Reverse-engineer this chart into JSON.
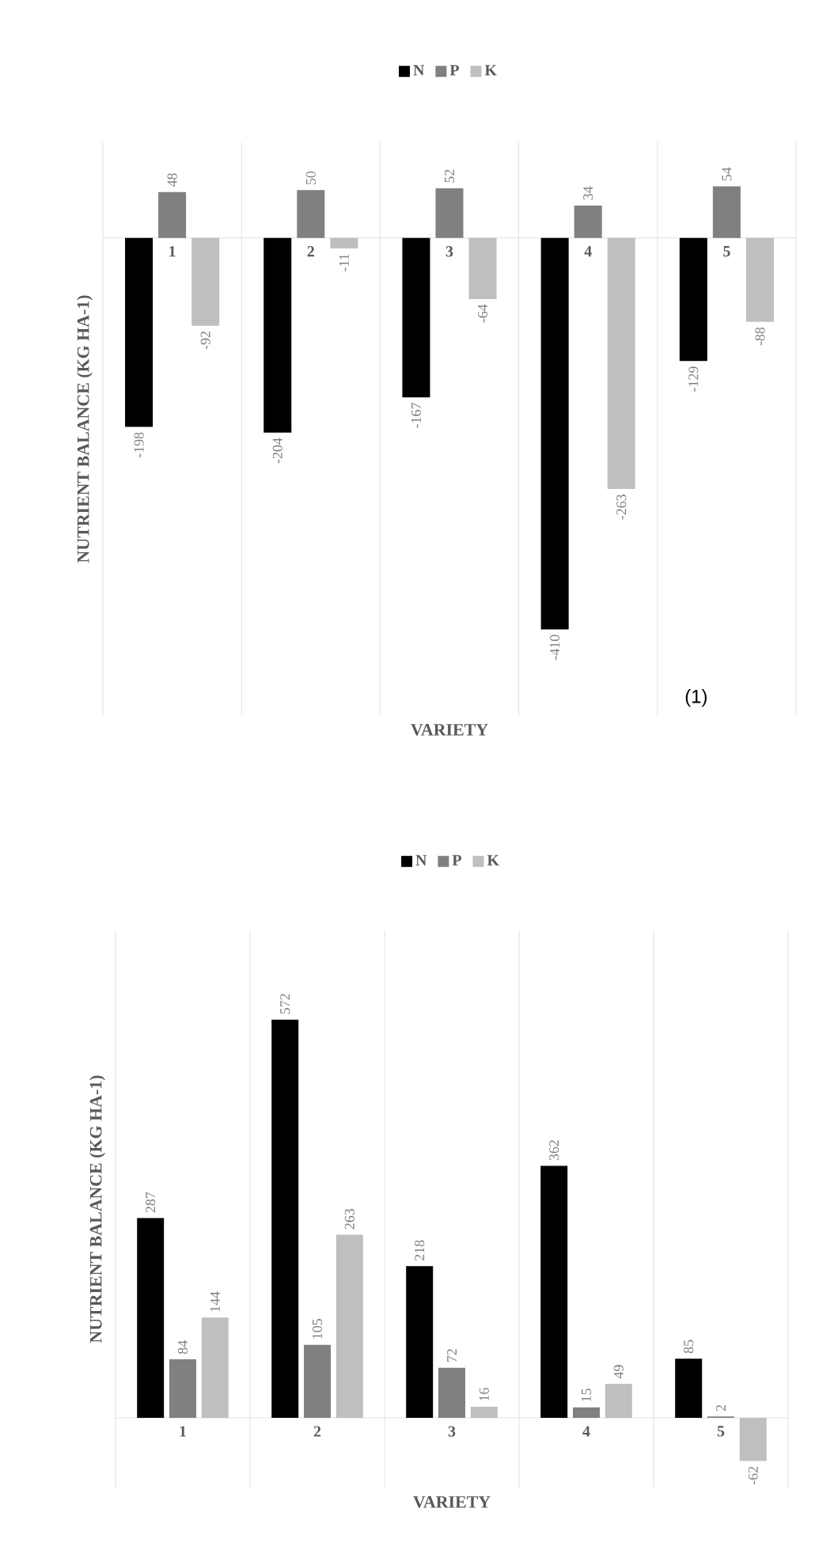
{
  "chart_data": [
    {
      "type": "bar",
      "categories": [
        "1",
        "2",
        "3",
        "4",
        "5"
      ],
      "xlabel": "VARIETY",
      "ylabel": "NUTRIENT BALANCE (KG HA-1)",
      "series": [
        {
          "name": "N",
          "color": "#000000",
          "values": [
            -198,
            -204,
            -167,
            -410,
            -129
          ]
        },
        {
          "name": "P",
          "color": "#808080",
          "values": [
            48,
            50,
            52,
            34,
            54
          ]
        },
        {
          "name": "K",
          "color": "#bfbfbf",
          "values": [
            -92,
            -11,
            -64,
            -263,
            -88
          ]
        }
      ],
      "ylim": [
        -500,
        100
      ],
      "tick_labels": "x",
      "data_labels": true,
      "legend": "top",
      "grid": "x",
      "annotations": [
        "(1)"
      ]
    },
    {
      "type": "bar",
      "categories": [
        "1",
        "2",
        "3",
        "4",
        "5"
      ],
      "xlabel": "VARIETY",
      "ylabel": "NUTRIENT BALANCE (KG HA-1)",
      "series": [
        {
          "name": "N",
          "color": "#000000",
          "values": [
            287,
            572,
            218,
            362,
            85
          ]
        },
        {
          "name": "P",
          "color": "#808080",
          "values": [
            84,
            105,
            72,
            15,
            2
          ]
        },
        {
          "name": "K",
          "color": "#bfbfbf",
          "values": [
            144,
            263,
            16,
            49,
            -62
          ]
        }
      ],
      "ylim": [
        -100,
        700
      ],
      "tick_labels": "x",
      "data_labels": true,
      "legend": "top",
      "grid": "x"
    }
  ]
}
